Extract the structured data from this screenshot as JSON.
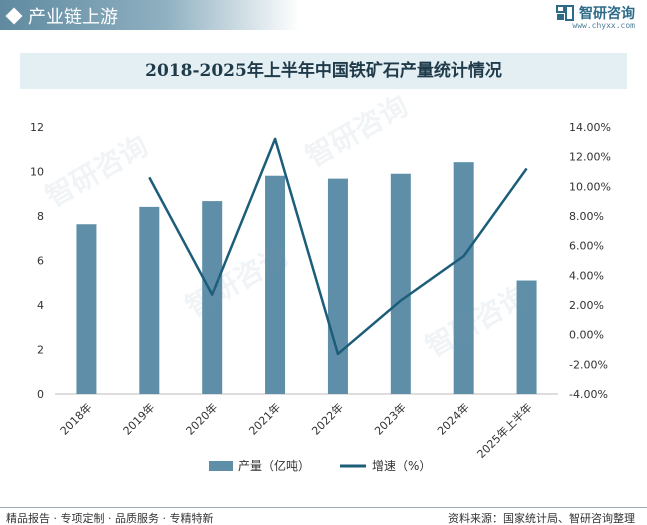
{
  "header": {
    "title": "产业链上游",
    "brand_name": "智研咨询",
    "brand_url": "www.chyxx.com"
  },
  "footer": {
    "left": "精品报告 · 专项定制 · 品质服务 · 专精特新",
    "source": "资料来源：国家统计局、智研咨询整理"
  },
  "watermark_text": "智研咨询",
  "colors": {
    "bar": "#5f8fa8",
    "line": "#1c5d7a",
    "title_bg": "#e4eff4"
  },
  "chart_data": {
    "type": "bar",
    "title": "2018-2025年上半年中国铁矿石产量统计情况",
    "categories": [
      "2018年",
      "2019年",
      "2020年",
      "2021年",
      "2022年",
      "2023年",
      "2024年",
      "2025年上半年"
    ],
    "series": [
      {
        "name": "产量（亿吨）",
        "type": "bar",
        "axis": "left",
        "values": [
          7.63,
          8.41,
          8.67,
          9.81,
          9.68,
          9.9,
          10.42,
          5.1
        ]
      },
      {
        "name": "增速（%）",
        "type": "line",
        "axis": "right",
        "values": [
          null,
          10.6,
          2.7,
          13.2,
          -1.3,
          2.3,
          5.3,
          11.2
        ]
      }
    ],
    "y_left": {
      "min": 0,
      "max": 12,
      "ticks": [
        "0",
        "2",
        "4",
        "6",
        "8",
        "10",
        "12"
      ]
    },
    "y_right": {
      "min": -4,
      "max": 14,
      "ticks": [
        "-4.00%",
        "-2.00%",
        "0.00%",
        "2.00%",
        "4.00%",
        "6.00%",
        "8.00%",
        "10.00%",
        "12.00%",
        "14.00%"
      ]
    },
    "legend_position": "bottom",
    "grid": false
  }
}
